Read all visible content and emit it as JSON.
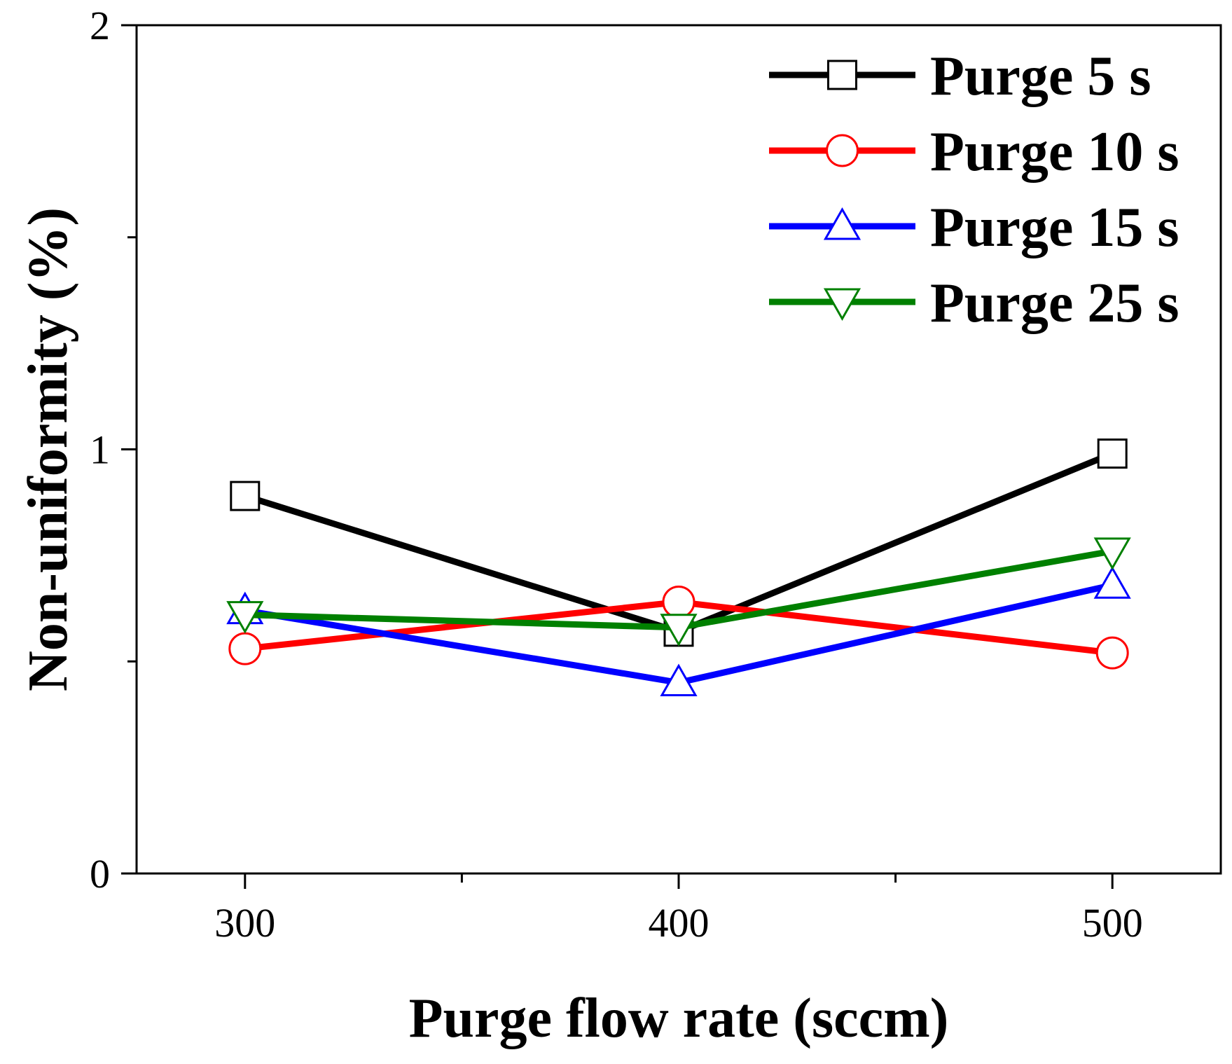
{
  "chart_data": {
    "type": "line",
    "title": "",
    "xlabel": "Purge flow rate (sccm)",
    "ylabel": "Non-uniformity (%)",
    "x": [
      300,
      400,
      500
    ],
    "xlim": [
      275,
      525
    ],
    "ylim": [
      0,
      2
    ],
    "xticks": [
      "300",
      "400",
      "500"
    ],
    "yticks": [
      "0",
      "1",
      "2"
    ],
    "legend_position": "top-right",
    "series": [
      {
        "name": "Purge 5 s",
        "color": "#000000",
        "marker": "square",
        "values": [
          0.89,
          0.57,
          0.99
        ]
      },
      {
        "name": "Purge 10 s",
        "color": "#ff0000",
        "marker": "circle",
        "values": [
          0.53,
          0.64,
          0.52
        ]
      },
      {
        "name": "Purge 15 s",
        "color": "#0000ff",
        "marker": "triangle-up",
        "values": [
          0.62,
          0.45,
          0.68
        ]
      },
      {
        "name": "Purge 25 s",
        "color": "#008000",
        "marker": "triangle-down",
        "values": [
          0.61,
          0.58,
          0.76
        ]
      }
    ]
  }
}
